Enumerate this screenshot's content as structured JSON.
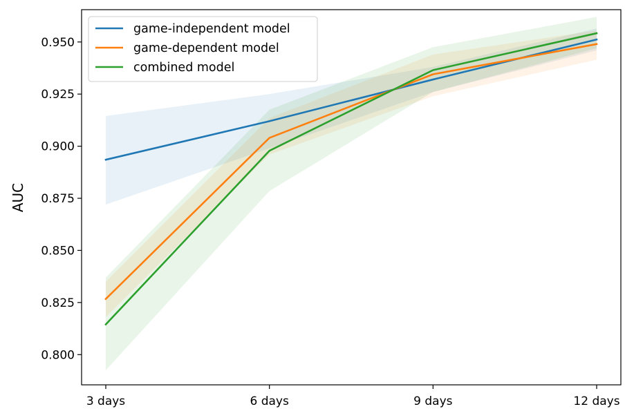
{
  "chart_data": {
    "type": "line",
    "title": "",
    "xlabel": "",
    "ylabel": "AUC",
    "categories": [
      "3 days",
      "6 days",
      "9 days",
      "12 days"
    ],
    "ylim": [
      0.7855,
      0.9655
    ],
    "yticks": [
      0.8,
      0.825,
      0.85,
      0.875,
      0.9,
      0.925,
      0.95
    ],
    "ytick_labels": [
      "0.800",
      "0.825",
      "0.850",
      "0.875",
      "0.900",
      "0.925",
      "0.950"
    ],
    "grid": false,
    "legend_position": "top-left",
    "series": [
      {
        "name": "game-independent model",
        "color": "#1f77b4",
        "values": [
          0.8935,
          0.912,
          0.932,
          0.9512
        ],
        "lower": [
          0.872,
          0.899,
          0.926,
          0.946
        ],
        "upper": [
          0.9145,
          0.925,
          0.938,
          0.9565
        ]
      },
      {
        "name": "game-dependent model",
        "color": "#ff7f0e",
        "values": [
          0.8267,
          0.904,
          0.9345,
          0.949
        ],
        "lower": [
          0.818,
          0.896,
          0.924,
          0.9415
        ],
        "upper": [
          0.835,
          0.9135,
          0.944,
          0.9555
        ]
      },
      {
        "name": "combined model",
        "color": "#2ca02c",
        "values": [
          0.8145,
          0.8978,
          0.9365,
          0.9542
        ],
        "lower": [
          0.7925,
          0.8785,
          0.926,
          0.947
        ],
        "upper": [
          0.837,
          0.9175,
          0.9475,
          0.962
        ]
      }
    ]
  }
}
